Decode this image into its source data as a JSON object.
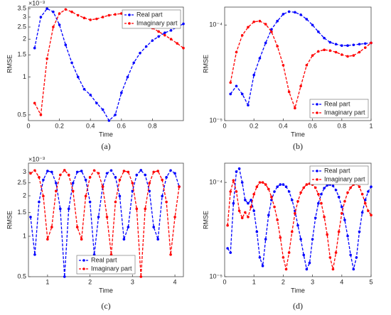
{
  "chart_data": [
    {
      "type": "line",
      "caption": "(a)",
      "xlabel": "Time",
      "ylabel": "RMSE",
      "y_multiplier": "×10⁻³",
      "log_y": true,
      "legend": "upper right",
      "xlim": [
        0,
        1
      ],
      "ylim": [
        0.45,
        3.6
      ],
      "xticks": [
        0,
        0.2,
        0.4,
        0.6,
        0.8
      ],
      "yticks": [
        0.5,
        1,
        1.5,
        2,
        2.5,
        3,
        3.5
      ],
      "x": [
        0.04,
        0.08,
        0.12,
        0.16,
        0.2,
        0.24,
        0.28,
        0.32,
        0.36,
        0.4,
        0.44,
        0.48,
        0.52,
        0.56,
        0.6,
        0.64,
        0.68,
        0.72,
        0.76,
        0.8,
        0.84,
        0.88,
        0.92,
        0.96,
        1.0
      ],
      "series": [
        {
          "name": "Real part",
          "color": "#0000ff",
          "values": [
            1.7,
            3.0,
            3.5,
            3.3,
            2.6,
            1.8,
            1.3,
            1.0,
            0.8,
            0.72,
            0.62,
            0.55,
            0.45,
            0.5,
            0.75,
            1.0,
            1.3,
            1.55,
            1.75,
            1.95,
            2.1,
            2.25,
            2.35,
            2.5,
            2.65
          ]
        },
        {
          "name": "Imaginary part",
          "color": "#ff0000",
          "values": [
            0.62,
            0.5,
            1.4,
            2.5,
            3.2,
            3.45,
            3.3,
            3.1,
            2.95,
            2.85,
            2.9,
            3.0,
            3.1,
            3.15,
            3.2,
            3.1,
            3.0,
            2.8,
            2.6,
            2.45,
            2.3,
            2.15,
            2.0,
            1.85,
            1.7
          ]
        }
      ]
    },
    {
      "type": "line",
      "caption": "(b)",
      "xlabel": "Time",
      "ylabel": "RMSE",
      "log_y": true,
      "legend": "lower right",
      "xlim": [
        0,
        1
      ],
      "ylim": [
        1e-05,
        0.000154
      ],
      "xticks": [
        0,
        0.2,
        0.4,
        0.6,
        0.8,
        1
      ],
      "yticks": [
        {
          "value": 1e-05,
          "label": "10⁻⁵"
        },
        {
          "value": 0.0001,
          "label": "10⁻⁴"
        }
      ],
      "x": [
        0.04,
        0.08,
        0.12,
        0.16,
        0.2,
        0.24,
        0.28,
        0.32,
        0.36,
        0.4,
        0.44,
        0.48,
        0.52,
        0.56,
        0.6,
        0.64,
        0.68,
        0.72,
        0.76,
        0.8,
        0.84,
        0.88,
        0.92,
        0.96,
        1.0
      ],
      "series": [
        {
          "name": "Real part",
          "color": "#0000ff",
          "values": [
            1.9e-05,
            2.3e-05,
            1.9e-05,
            1.45e-05,
            3e-05,
            4.5e-05,
            6.5e-05,
            9e-05,
            0.00011,
            0.00013,
            0.000138,
            0.000136,
            0.000128,
            0.000115,
            0.0001,
            8.5e-05,
            7.3e-05,
            6.6e-05,
            6.3e-05,
            6.1e-05,
            6.1e-05,
            6.2e-05,
            6.3e-05,
            6.4e-05,
            6.5e-05
          ]
        },
        {
          "name": "Imaginary part",
          "color": "#ff0000",
          "values": [
            2.5e-05,
            5.2e-05,
            7.8e-05,
            9.5e-05,
            0.000108,
            0.00011,
            0.000102,
            8.5e-05,
            6e-05,
            3.8e-05,
            2e-05,
            1.35e-05,
            2.3e-05,
            3.8e-05,
            4.8e-05,
            5.3e-05,
            5.5e-05,
            5.4e-05,
            5.2e-05,
            4.9e-05,
            4.7e-05,
            4.8e-05,
            5.2e-05,
            5.8e-05,
            6.5e-05
          ]
        }
      ]
    },
    {
      "type": "line",
      "caption": "(c)",
      "xlabel": "Time",
      "ylabel": "RMSE",
      "y_multiplier": "×10⁻³",
      "log_y": true,
      "legend": "lower center",
      "xlim": [
        0.55,
        4.2
      ],
      "ylim": [
        0.5,
        3.5
      ],
      "xticks": [
        1,
        2,
        3,
        4
      ],
      "yticks": [
        0.5,
        1,
        1.5,
        2,
        2.5,
        3
      ],
      "x": [
        0.6,
        0.7,
        0.8,
        0.9,
        1.0,
        1.1,
        1.2,
        1.3,
        1.4,
        1.5,
        1.6,
        1.7,
        1.8,
        1.9,
        2.0,
        2.1,
        2.2,
        2.3,
        2.4,
        2.5,
        2.6,
        2.7,
        2.8,
        2.9,
        3.0,
        3.1,
        3.2,
        3.3,
        3.4,
        3.5,
        3.6,
        3.7,
        3.8,
        3.9,
        4.0,
        4.1
      ],
      "series": [
        {
          "name": "Real part",
          "color": "#0000ff",
          "values": [
            1.39,
            0.73,
            1.8,
            2.63,
            3.06,
            3.01,
            2.49,
            1.6,
            0.5,
            1.6,
            2.49,
            3.01,
            3.06,
            2.63,
            1.8,
            0.73,
            1.39,
            2.34,
            2.94,
            3.09,
            2.75,
            1.99,
            0.95,
            1.17,
            2.17,
            2.86,
            3.1,
            2.86,
            2.17,
            1.17,
            0.95,
            1.99,
            2.75,
            3.09,
            2.94,
            2.34
          ]
        },
        {
          "name": "Imaginary part",
          "color": "#ff0000",
          "values": [
            2.94,
            3.09,
            2.75,
            1.99,
            0.95,
            1.17,
            2.17,
            2.86,
            3.1,
            2.86,
            2.17,
            1.17,
            0.95,
            1.99,
            2.75,
            3.09,
            2.94,
            2.34,
            1.39,
            0.73,
            1.8,
            2.63,
            3.06,
            3.01,
            2.49,
            1.6,
            0.5,
            1.6,
            2.49,
            3.01,
            3.06,
            2.63,
            1.8,
            0.73,
            1.39,
            2.34
          ]
        }
      ]
    },
    {
      "type": "line",
      "caption": "(d)",
      "xlabel": "Time",
      "ylabel": "RMSE",
      "log_y": true,
      "legend": "upper right",
      "xlim": [
        0,
        5
      ],
      "ylim": [
        1e-05,
        0.00016
      ],
      "xticks": [
        0,
        1,
        2,
        3,
        4,
        5
      ],
      "yticks": [
        {
          "value": 1e-05,
          "label": "10⁻⁵"
        },
        {
          "value": 0.0001,
          "label": "10⁻⁴"
        }
      ],
      "x": [
        0.1,
        0.2,
        0.3,
        0.4,
        0.5,
        0.6,
        0.7,
        0.8,
        0.9,
        1.0,
        1.1,
        1.2,
        1.3,
        1.4,
        1.5,
        1.6,
        1.7,
        1.8,
        1.9,
        2.0,
        2.1,
        2.2,
        2.3,
        2.4,
        2.5,
        2.6,
        2.7,
        2.8,
        2.9,
        3.0,
        3.1,
        3.2,
        3.3,
        3.4,
        3.5,
        3.6,
        3.7,
        3.8,
        3.9,
        4.0,
        4.1,
        4.2,
        4.3,
        4.4,
        4.5,
        4.6,
        4.7,
        4.8,
        4.9,
        5.0
      ],
      "series": [
        {
          "name": "Real part",
          "color": "#0000ff",
          "values": [
            2e-05,
            1.8e-05,
            6e-05,
            0.00013,
            0.00014,
            0.0001,
            6.5e-05,
            6e-05,
            6.5e-05,
            5e-05,
            3e-05,
            1.6e-05,
            1.3e-05,
            2.5e-05,
            4.5e-05,
            6.5e-05,
            8e-05,
            9e-05,
            9.5e-05,
            9.5e-05,
            9e-05,
            8e-05,
            6.5e-05,
            5e-05,
            3.5e-05,
            2.5e-05,
            1.7e-05,
            1.2e-05,
            1.4e-05,
            2.5e-05,
            4.2e-05,
            6e-05,
            7.5e-05,
            8.7e-05,
            9.3e-05,
            9.5e-05,
            9.2e-05,
            8.3e-05,
            7e-05,
            5.5e-05,
            4e-05,
            2.7e-05,
            1.7e-05,
            1.2e-05,
            1.6e-05,
            3e-05,
            4.8e-05,
            6.5e-05,
            8e-05,
            9e-05
          ]
        },
        {
          "name": "Imaginary part",
          "color": "#ff0000",
          "values": [
            3.5e-05,
            8e-05,
            0.000105,
            8e-05,
            5e-05,
            4.2e-05,
            4.8e-05,
            4.3e-05,
            5.5e-05,
            7.5e-05,
            9e-05,
            0.0001,
            0.0001,
            9.5e-05,
            8.5e-05,
            7e-05,
            5.5e-05,
            4e-05,
            2.6e-05,
            1.6e-05,
            1.2e-05,
            1.8e-05,
            3e-05,
            4.7e-05,
            6.3e-05,
            7.8e-05,
            8.8e-05,
            9.5e-05,
            9.7e-05,
            9.5e-05,
            8.8e-05,
            7.5e-05,
            6e-05,
            4.3e-05,
            2.8e-05,
            1.6e-05,
            1.2e-05,
            1.8e-05,
            3e-05,
            4.7e-05,
            6.3e-05,
            7.8e-05,
            8.8e-05,
            9.5e-05,
            9.7e-05,
            9e-05,
            7.5e-05,
            6e-05,
            5e-05,
            4.5e-05
          ]
        }
      ]
    }
  ]
}
